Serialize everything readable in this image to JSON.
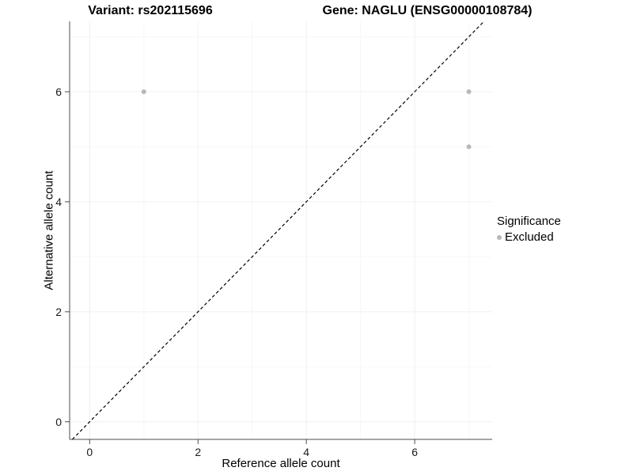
{
  "chart_data": {
    "type": "scatter",
    "title_left": "Variant: rs202115696",
    "title_right": "Gene: NAGLU (ENSG00000108784)",
    "xlabel": "Reference allele count",
    "ylabel": "Alternative allele count",
    "xlim": [
      -0.37,
      7.43
    ],
    "ylim": [
      -0.32,
      7.28
    ],
    "xticks": [
      0,
      2,
      4,
      6
    ],
    "yticks": [
      0,
      2,
      4,
      6
    ],
    "grid": "faint",
    "series": [
      {
        "name": "Excluded",
        "color": "#b8b8b8",
        "points": [
          [
            1,
            6
          ],
          [
            7,
            6
          ],
          [
            7,
            5
          ]
        ]
      }
    ],
    "reference_line": {
      "type": "identity",
      "style": "dashed",
      "color": "#000000"
    },
    "legend": {
      "title": "Significance",
      "entries": [
        "Excluded"
      ],
      "position": "right"
    }
  },
  "colors": {
    "point": "#b8b8b8",
    "axis": "#4d4d4d",
    "grid": "#f0f0f0",
    "grid_minor": "#f7f7f7",
    "text": "#000000",
    "background": "#ffffff"
  }
}
